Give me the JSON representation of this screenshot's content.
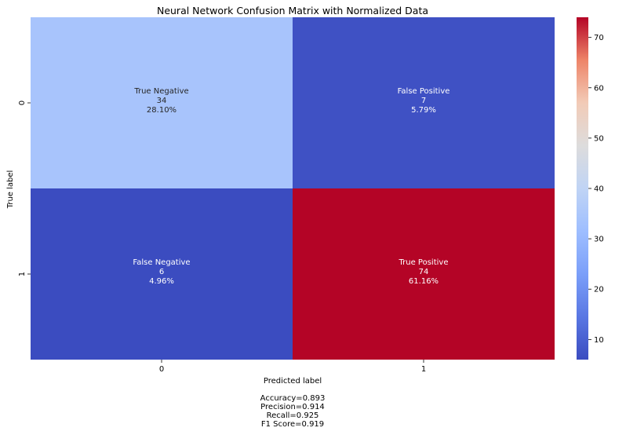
{
  "chart_data": {
    "type": "heatmap",
    "title": "Neural Network Confusion Matrix with Normalized Data",
    "xlabel": "Predicted label",
    "ylabel": "True label",
    "x_categories": [
      "0",
      "1"
    ],
    "y_categories": [
      "0",
      "1"
    ],
    "cells": [
      {
        "row": 0,
        "col": 0,
        "name": "True Negative",
        "count": 34,
        "percent": "28.10%"
      },
      {
        "row": 0,
        "col": 1,
        "name": "False Positive",
        "count": 7,
        "percent": "5.79%"
      },
      {
        "row": 1,
        "col": 0,
        "name": "False Negative",
        "count": 6,
        "percent": "4.96%"
      },
      {
        "row": 1,
        "col": 1,
        "name": "True Positive",
        "count": 74,
        "percent": "61.16%"
      }
    ],
    "colormap": "coolwarm",
    "colorbar": {
      "vmin": 6,
      "vmax": 74,
      "ticks": [
        10,
        20,
        30,
        40,
        50,
        60,
        70
      ]
    },
    "summary": [
      "Accuracy=0.893",
      "Precision=0.914",
      "Recall=0.925",
      "F1 Score=0.919"
    ],
    "grid": false,
    "legend": "colorbar-right"
  }
}
